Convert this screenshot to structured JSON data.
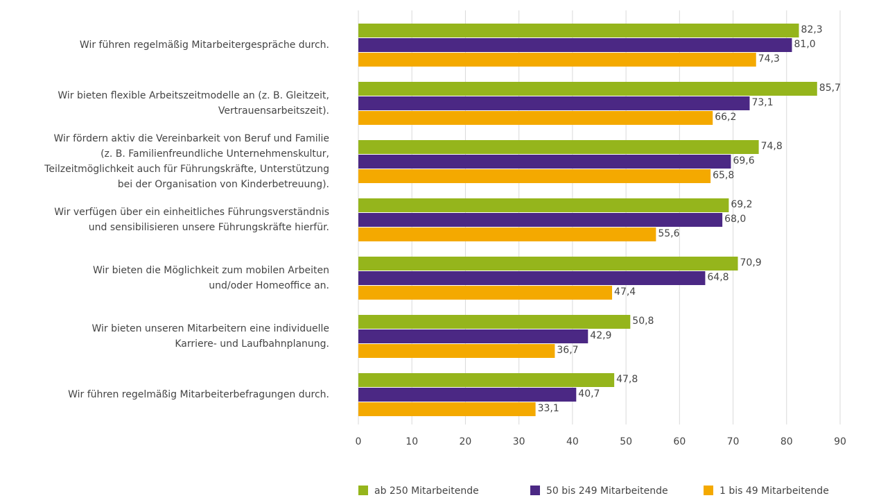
{
  "chart_data": {
    "type": "barh",
    "categories": [
      [
        "Wir führen regelmäßig Mitarbeitergespräche durch."
      ],
      [
        "Wir bieten flexible Arbeitszeitmodelle an (z. B. Gleitzeit,",
        "Vertrauensarbeitszeit)."
      ],
      [
        "Wir fördern aktiv die Vereinbarkeit von Beruf und Familie",
        "(z. B. Familienfreundliche Unternehmenskultur,",
        "Teilzeitmöglichkeit auch für Führungskräfte, Unterstützung",
        "bei der Organisation von Kinderbetreuung)."
      ],
      [
        "Wir verfügen über ein einheitliches Führungsverständnis",
        "und sensibilisieren unsere Führungskräfte hierfür."
      ],
      [
        "Wir bieten die Möglichkeit zum mobilen Arbeiten",
        "und/oder Homeoffice an."
      ],
      [
        "Wir bieten unseren Mitarbeitern eine individuelle",
        "Karriere- und Laufbahnplanung."
      ],
      [
        "Wir führen regelmäßig Mitarbeiterbefragungen durch."
      ]
    ],
    "series": [
      {
        "name": "ab 250 Mitarbeitende",
        "color": "#95b51c",
        "values": [
          82.3,
          85.7,
          74.8,
          69.2,
          70.9,
          50.8,
          47.8
        ],
        "value_labels": [
          "82,3",
          "85,7",
          "74,8",
          "69,2",
          "70,9",
          "50,8",
          "47,8"
        ]
      },
      {
        "name": "50 bis 249 Mitarbeitende",
        "color": "#4b2884",
        "values": [
          81.0,
          73.1,
          69.6,
          68.0,
          64.8,
          42.9,
          40.7
        ],
        "value_labels": [
          "81,0",
          "73,1",
          "69,6",
          "68,0",
          "64,8",
          "42,9",
          "40,7"
        ]
      },
      {
        "name": "1 bis 49 Mitarbeitende",
        "color": "#f4a900",
        "values": [
          74.3,
          66.2,
          65.8,
          55.6,
          47.4,
          36.7,
          33.1
        ],
        "value_labels": [
          "74,3",
          "66,2",
          "65,8",
          "55,6",
          "47,4",
          "36,7",
          "33,1"
        ]
      }
    ],
    "xlim": [
      0,
      90
    ],
    "xticks": [
      0,
      10,
      20,
      30,
      40,
      50,
      60,
      70,
      80,
      90
    ],
    "grid": true,
    "legend": "bottom"
  }
}
